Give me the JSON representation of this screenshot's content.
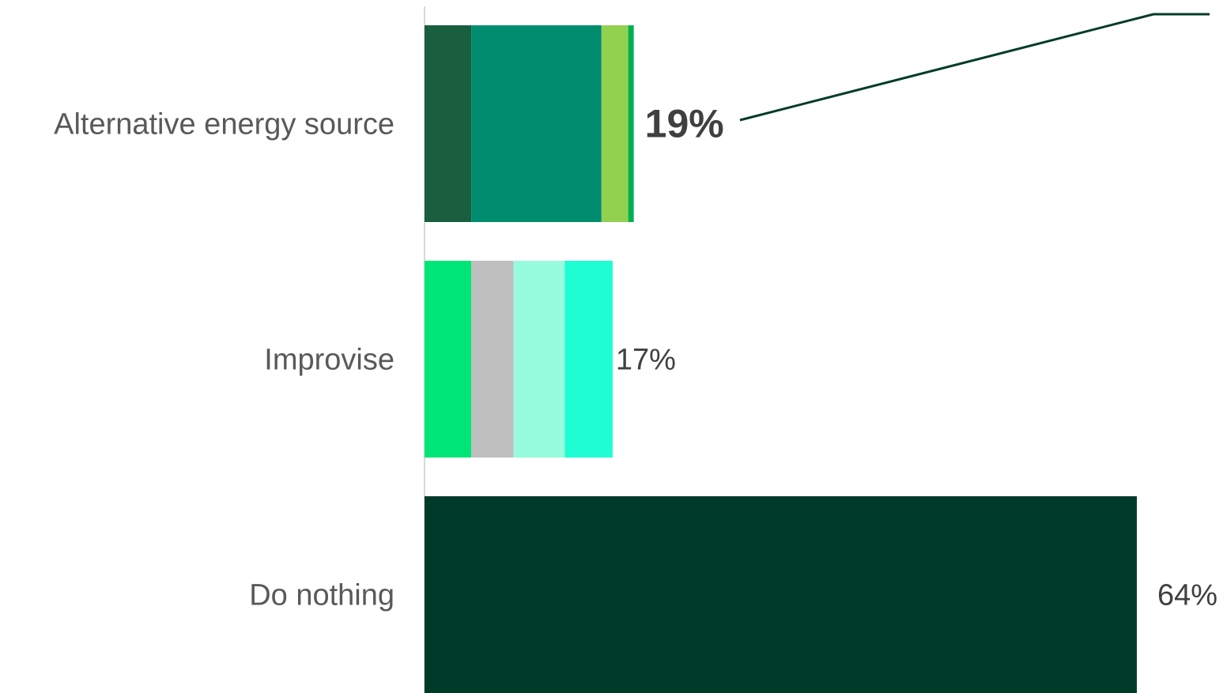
{
  "chart_data": {
    "type": "bar",
    "orientation": "horizontal",
    "stacked": true,
    "title": "",
    "xlabel": "",
    "ylabel": "",
    "xlim": [
      0,
      64
    ],
    "grid": false,
    "legend": "none",
    "categories": [
      "Alternative energy source",
      "Improvise",
      "Do nothing"
    ],
    "totals": [
      "19%",
      "17%",
      "64%"
    ],
    "emphasized_total": "Alternative energy source",
    "segments": [
      [
        {
          "value": 4.2,
          "color": "#185E3F"
        },
        {
          "value": 11.7,
          "color": "#008C6E"
        },
        {
          "value": 2.4,
          "color": "#92D050"
        },
        {
          "value": 0.5,
          "color": "#00B050"
        }
      ],
      [
        {
          "value": 4.2,
          "color": "#00E676"
        },
        {
          "value": 3.8,
          "color": "#BFBFBF"
        },
        {
          "value": 4.6,
          "color": "#96FCDC"
        },
        {
          "value": 4.3,
          "color": "#1FFDD3"
        }
      ],
      [
        {
          "value": 64,
          "color": "#003B2A"
        }
      ]
    ],
    "colors": {
      "axis": "#D9D9D9",
      "callout_line": "#003B2A"
    }
  }
}
